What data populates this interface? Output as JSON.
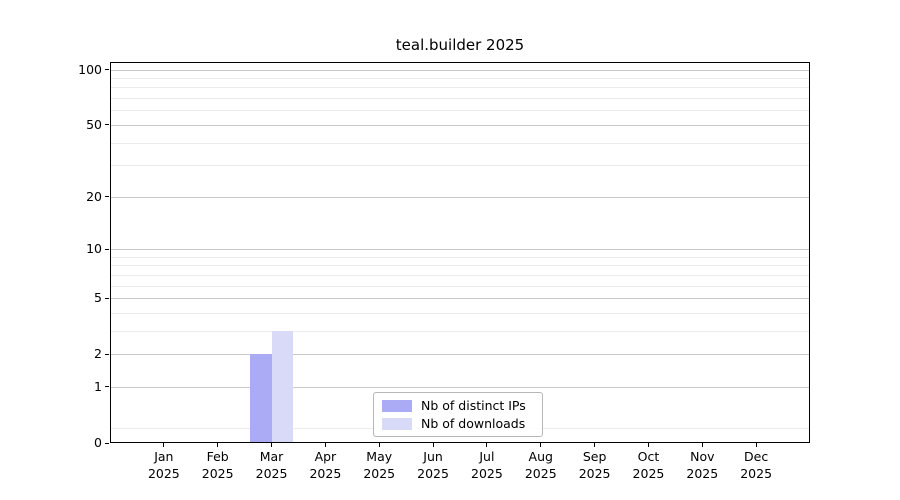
{
  "chart_data": {
    "type": "bar",
    "title": "teal.builder 2025",
    "categories": [
      "Jan",
      "Feb",
      "Mar",
      "Apr",
      "May",
      "Jun",
      "Jul",
      "Aug",
      "Sep",
      "Oct",
      "Nov",
      "Dec"
    ],
    "category_sublabel": "2025",
    "series": [
      {
        "name": "Nb of distinct IPs",
        "color": "#aaaaf5",
        "values": [
          0,
          0,
          2,
          0,
          0,
          0,
          0,
          0,
          0,
          0,
          0,
          0
        ]
      },
      {
        "name": "Nb of downloads",
        "color": "#d9d9f8",
        "values": [
          0,
          0,
          3,
          0,
          0,
          0,
          0,
          0,
          0,
          0,
          0,
          0
        ]
      }
    ],
    "xlabel": "",
    "ylabel": "",
    "y_scale": "log1p",
    "ylim": [
      0,
      110
    ],
    "y_major_ticks": [
      0,
      1,
      2,
      5,
      10,
      20,
      50,
      100
    ],
    "y_minor_ticks": [
      0.2,
      3,
      4,
      6,
      7,
      8,
      9,
      30,
      40,
      60,
      70,
      80,
      90
    ],
    "grid": "horizontal",
    "legend_position": "lower center"
  },
  "colors": {
    "background": "#ffffff",
    "axis": "#000000",
    "grid_major": "#c9c9c9",
    "grid_minor": "#ececec",
    "bar_distinct_ips": "#aaaaf5",
    "bar_downloads": "#d9d9f8"
  }
}
